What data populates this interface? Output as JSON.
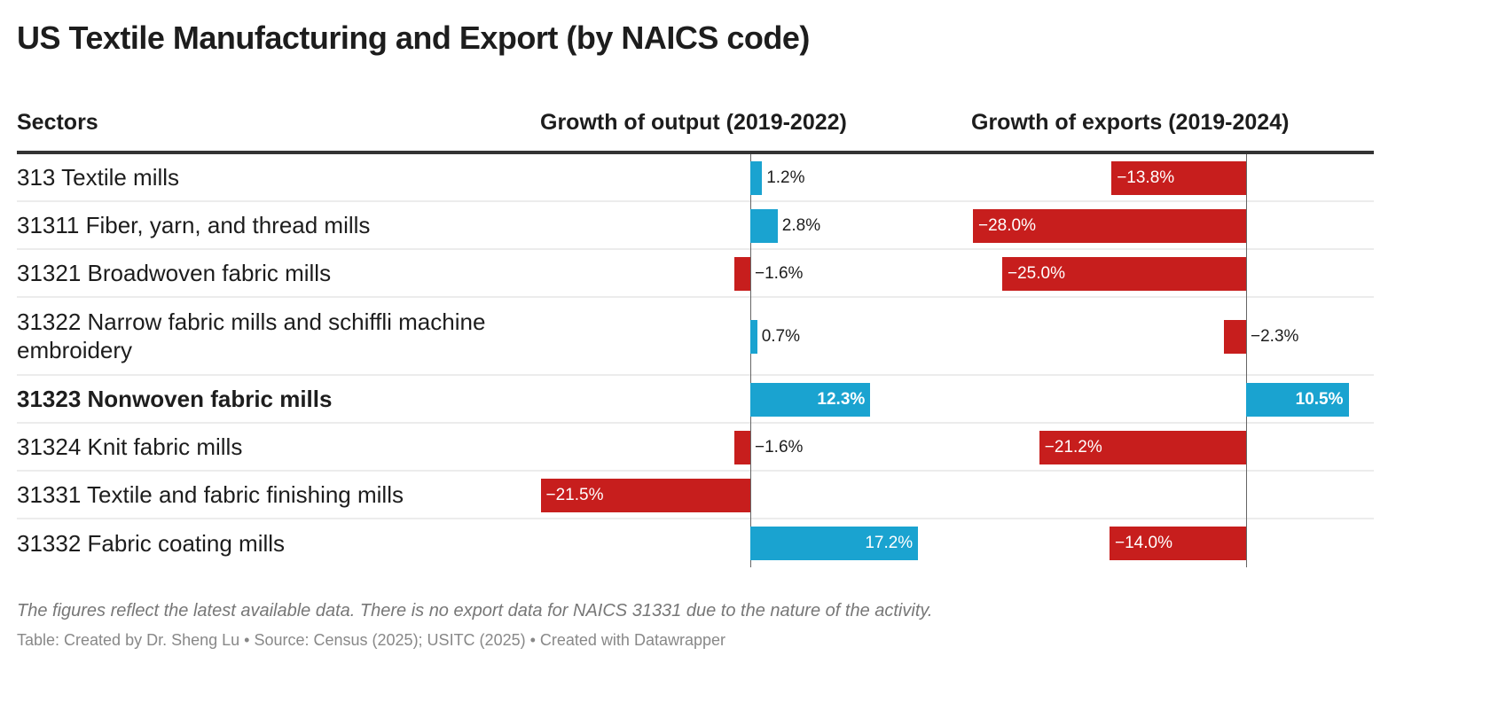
{
  "title": "US Textile Manufacturing and Export (by NAICS code)",
  "columns": {
    "sectors": "Sectors",
    "output": "Growth of output (2019-2022)",
    "exports": "Growth of exports (2019-2024)"
  },
  "colors": {
    "positive": "#1aa3d0",
    "negative": "#c71e1d"
  },
  "chart_data": {
    "type": "table",
    "rows": [
      {
        "sector": "313 Textile mills",
        "output": 1.2,
        "output_label": "1.2%",
        "exports": -13.8,
        "exports_label": "−13.8%",
        "bold": false
      },
      {
        "sector": "31311 Fiber, yarn, and thread mills",
        "output": 2.8,
        "output_label": "2.8%",
        "exports": -28.0,
        "exports_label": "−28.0%",
        "bold": false
      },
      {
        "sector": "31321 Broadwoven fabric mills",
        "output": -1.6,
        "output_label": "−1.6%",
        "exports": -25.0,
        "exports_label": "−25.0%",
        "bold": false
      },
      {
        "sector": "31322 Narrow fabric mills and schiffli machine embroidery",
        "output": 0.7,
        "output_label": "0.7%",
        "exports": -2.3,
        "exports_label": "−2.3%",
        "bold": false
      },
      {
        "sector": "31323 Nonwoven fabric mills",
        "output": 12.3,
        "output_label": "12.3%",
        "exports": 10.5,
        "exports_label": "10.5%",
        "bold": true
      },
      {
        "sector": "31324 Knit fabric mills",
        "output": -1.6,
        "output_label": "−1.6%",
        "exports": -21.2,
        "exports_label": "−21.2%",
        "bold": false
      },
      {
        "sector": "31331 Textile and fabric finishing mills",
        "output": -21.5,
        "output_label": "−21.5%",
        "exports": null,
        "exports_label": "",
        "bold": false
      },
      {
        "sector": "31332 Fabric coating mills",
        "output": 17.2,
        "output_label": "17.2%",
        "exports": -14.0,
        "exports_label": "−14.0%",
        "bold": false
      }
    ]
  },
  "notes": "The figures reflect the latest available data. There is no export data for NAICS 31331 due to the nature of the activity.",
  "credit": "Table: Created by Dr. Sheng Lu • Source: Census (2025); USITC (2025) • Created with Datawrapper"
}
